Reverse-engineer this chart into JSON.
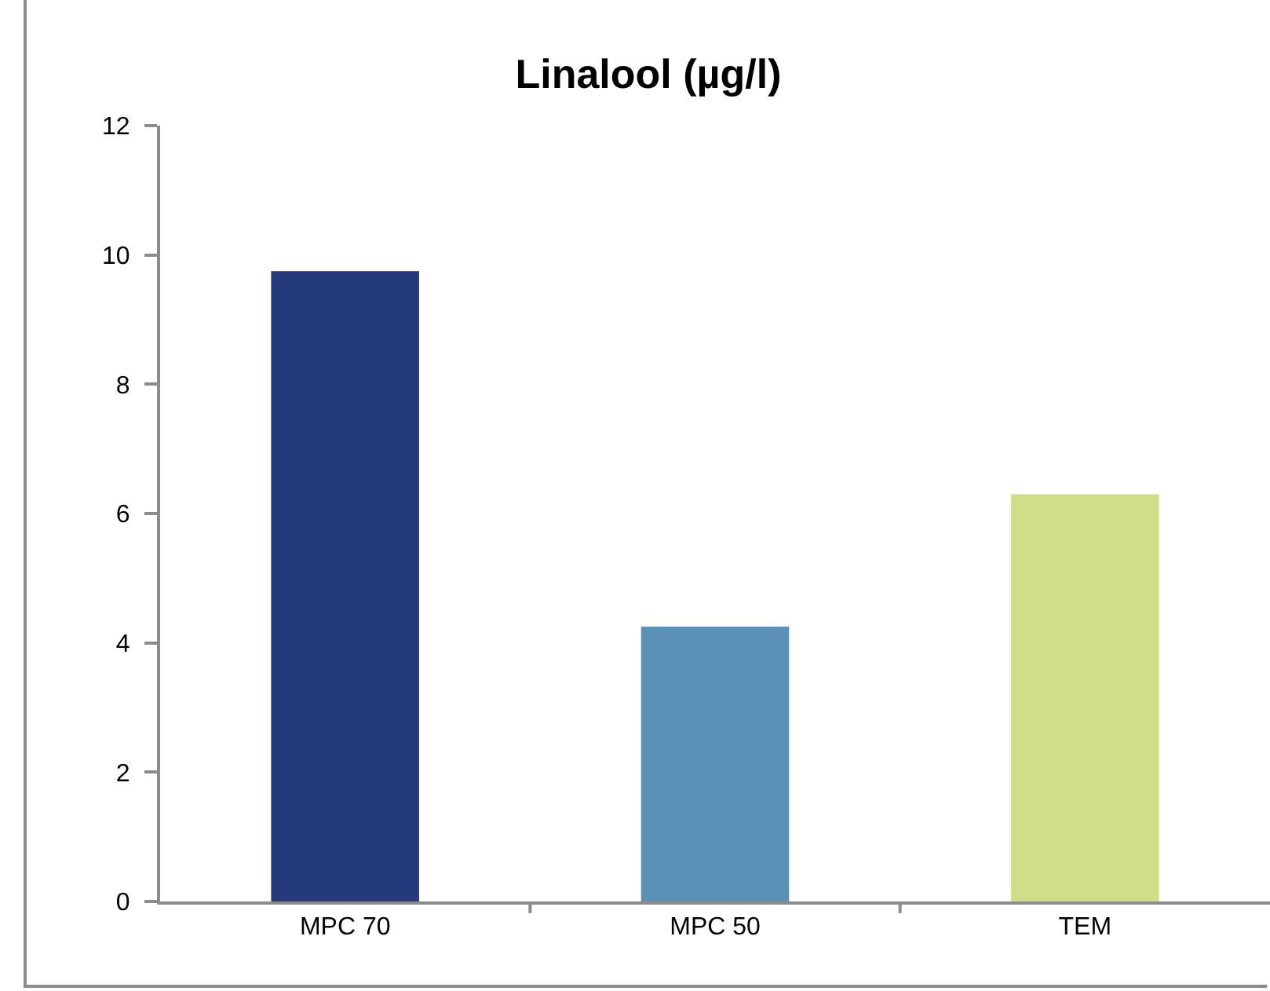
{
  "chart_data": {
    "type": "bar",
    "title": "Linalool (µg/l)",
    "categories": [
      "MPC 70",
      "MPC 50",
      "TEM"
    ],
    "values": [
      9.75,
      4.25,
      6.3
    ],
    "colors": [
      "#243a7a",
      "#5b91b6",
      "#d0de88"
    ],
    "ylim": [
      0,
      12
    ],
    "yticks": [
      0,
      2,
      4,
      6,
      8,
      10,
      12
    ],
    "grid": false,
    "legend": false
  }
}
